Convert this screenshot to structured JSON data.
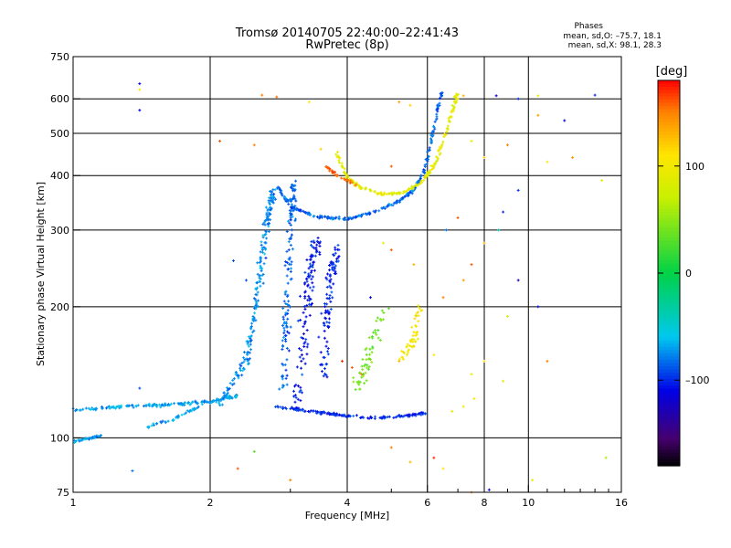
{
  "chart_data": {
    "type": "scatter",
    "title": "Tromsø 20140705 22:40:00–22:41:43",
    "subtitle": "RwPretec (8p)",
    "xlabel": "Frequency [MHz]",
    "ylabel": "Stationary phase Virtual Height [km]",
    "x_scale": "log",
    "y_scale": "log",
    "xlim": [
      1,
      16
    ],
    "ylim": [
      75,
      750
    ],
    "x_ticks": [
      1,
      2,
      4,
      6,
      8,
      10,
      16
    ],
    "x_tick_labels": [
      "1",
      "2",
      "4",
      "6",
      "8",
      "10",
      "16"
    ],
    "x_minor_ticks": [
      3,
      5,
      7,
      9,
      11,
      12,
      13,
      14,
      15
    ],
    "y_ticks": [
      75,
      100,
      200,
      300,
      400,
      500,
      600,
      750
    ],
    "y_tick_labels": [
      "75",
      "100",
      "200",
      "300",
      "400",
      "500",
      "600",
      "750"
    ],
    "grid": true,
    "stats": {
      "header": "Phases",
      "line_o": "mean, sd,O: –75.7, 18.1",
      "line_x": "mean, sd,X: 98.1, 28.3"
    },
    "colorbar": {
      "label": "[deg]",
      "range": [
        -180,
        180
      ],
      "ticks": [
        100,
        0,
        -100
      ],
      "tick_labels": [
        "100",
        "0",
        "–100"
      ]
    },
    "traces": [
      {
        "name": "",
        "segments": [
          [
            1.0,
            98
          ],
          [
            1.15,
            101
          ]
        ],
        "phase": -70,
        "n": 45,
        "spread": 0.008
      },
      {
        "name": "",
        "segments": [
          [
            1.0,
            116
          ],
          [
            1.3,
            118
          ],
          [
            1.6,
            119
          ],
          [
            2.0,
            121
          ],
          [
            2.3,
            125
          ]
        ],
        "phase": -70,
        "n": 170,
        "spread": 0.012
      },
      {
        "name": "",
        "segments": [
          [
            1.45,
            106
          ],
          [
            1.65,
            110
          ],
          [
            1.9,
            118
          ]
        ],
        "phase": -70,
        "n": 40,
        "spread": 0.015
      },
      {
        "name": "",
        "segments": [
          [
            2.1,
            120
          ],
          [
            2.4,
            150
          ],
          [
            2.55,
            220
          ],
          [
            2.65,
            300
          ],
          [
            2.75,
            370
          ]
        ],
        "phase": -75,
        "n": 210,
        "spread": 0.025
      },
      {
        "name": "",
        "segments": [
          [
            2.9,
            130
          ],
          [
            2.95,
            200
          ],
          [
            3.0,
            300
          ],
          [
            3.05,
            390
          ]
        ],
        "phase": -85,
        "n": 140,
        "spread": 0.03
      },
      {
        "name": "",
        "segments": [
          [
            2.8,
            380
          ],
          [
            3.0,
            340
          ],
          [
            3.4,
            322
          ],
          [
            4.0,
            318
          ],
          [
            4.6,
            330
          ],
          [
            5.2,
            350
          ],
          [
            5.6,
            370
          ],
          [
            5.9,
            410
          ],
          [
            6.1,
            470
          ],
          [
            6.3,
            560
          ],
          [
            6.45,
            620
          ]
        ],
        "phase": -85,
        "n": 260,
        "spread": 0.01
      },
      {
        "name": "",
        "segments": [
          [
            3.8,
            450
          ],
          [
            4.0,
            395
          ],
          [
            4.3,
            375
          ],
          [
            4.8,
            362
          ],
          [
            5.3,
            365
          ],
          [
            5.8,
            385
          ],
          [
            6.2,
            420
          ],
          [
            6.5,
            480
          ],
          [
            6.8,
            560
          ],
          [
            7.0,
            620
          ]
        ],
        "phase": 90,
        "n": 200,
        "spread": 0.012
      },
      {
        "name": "",
        "segments": [
          [
            3.6,
            420
          ],
          [
            3.8,
            400
          ],
          [
            4.2,
            380
          ]
        ],
        "phase": 155,
        "n": 35,
        "spread": 0.01
      },
      {
        "name": "",
        "segments": [
          [
            2.8,
            118
          ],
          [
            3.3,
            115
          ],
          [
            3.8,
            113
          ],
          [
            4.5,
            111
          ],
          [
            5.2,
            112
          ],
          [
            6.0,
            114
          ]
        ],
        "phase": -100,
        "n": 150,
        "spread": 0.01
      },
      {
        "name": "",
        "segments": [
          [
            3.1,
            120
          ],
          [
            3.2,
            170
          ],
          [
            3.3,
            230
          ],
          [
            3.45,
            290
          ]
        ],
        "phase": -105,
        "n": 120,
        "spread": 0.04
      },
      {
        "name": "",
        "segments": [
          [
            3.5,
            130
          ],
          [
            3.6,
            180
          ],
          [
            3.7,
            240
          ],
          [
            3.8,
            270
          ]
        ],
        "phase": -100,
        "n": 100,
        "spread": 0.04
      },
      {
        "name": "",
        "segments": [
          [
            4.2,
            130
          ],
          [
            4.5,
            160
          ],
          [
            4.8,
            200
          ]
        ],
        "phase": 40,
        "n": 60,
        "spread": 0.05
      },
      {
        "name": "",
        "segments": [
          [
            5.3,
            150
          ],
          [
            5.6,
            170
          ],
          [
            5.8,
            200
          ]
        ],
        "phase": 105,
        "n": 50,
        "spread": 0.04
      }
    ],
    "scatter_points": [
      [
        1.4,
        650,
        -110
      ],
      [
        1.4,
        565,
        -110
      ],
      [
        1.4,
        630,
        110
      ],
      [
        2.6,
        612,
        150
      ],
      [
        2.8,
        606,
        155
      ],
      [
        3.3,
        590,
        110
      ],
      [
        5.2,
        590,
        140
      ],
      [
        5.5,
        580,
        120
      ],
      [
        7.2,
        610,
        130
      ],
      [
        8.5,
        610,
        -120
      ],
      [
        9.5,
        600,
        -100
      ],
      [
        10.5,
        610,
        100
      ],
      [
        12.0,
        535,
        -110
      ],
      [
        14.0,
        612,
        -100
      ],
      [
        10.5,
        550,
        140
      ],
      [
        9.0,
        470,
        150
      ],
      [
        8.0,
        440,
        120
      ],
      [
        7.5,
        480,
        100
      ],
      [
        2.1,
        480,
        160
      ],
      [
        2.5,
        470,
        150
      ],
      [
        3.5,
        460,
        120
      ],
      [
        11.0,
        430,
        110
      ],
      [
        12.5,
        440,
        140
      ],
      [
        8.8,
        330,
        -100
      ],
      [
        9.5,
        370,
        -100
      ],
      [
        14.5,
        390,
        90
      ],
      [
        9.5,
        230,
        -130
      ],
      [
        10.5,
        200,
        -110
      ],
      [
        7.0,
        320,
        160
      ],
      [
        7.5,
        250,
        160
      ],
      [
        8.0,
        280,
        130
      ],
      [
        7.2,
        230,
        140
      ],
      [
        7.5,
        140,
        100
      ],
      [
        8.0,
        150,
        110
      ],
      [
        8.8,
        135,
        90
      ],
      [
        6.8,
        115,
        90
      ],
      [
        7.2,
        118,
        100
      ],
      [
        7.6,
        123,
        110
      ],
      [
        6.2,
        90,
        170
      ],
      [
        6.5,
        85,
        110
      ],
      [
        5.0,
        95,
        150
      ],
      [
        5.5,
        88,
        130
      ],
      [
        7.5,
        75,
        150
      ],
      [
        8.2,
        76,
        -110
      ],
      [
        10.2,
        80,
        100
      ],
      [
        14.8,
        90,
        60
      ],
      [
        2.5,
        93,
        30
      ],
      [
        2.3,
        85,
        160
      ],
      [
        3.0,
        80,
        150
      ],
      [
        1.35,
        84,
        -80
      ],
      [
        1.4,
        130,
        -90
      ],
      [
        5.0,
        420,
        160
      ],
      [
        4.5,
        210,
        -110
      ],
      [
        6.5,
        210,
        150
      ],
      [
        5.0,
        270,
        160
      ],
      [
        4.8,
        280,
        100
      ],
      [
        9.0,
        190,
        80
      ],
      [
        8.6,
        300,
        -40
      ],
      [
        11.0,
        150,
        150
      ],
      [
        3.9,
        150,
        170
      ],
      [
        4.1,
        145,
        160
      ],
      [
        4.3,
        140,
        150
      ],
      [
        5.2,
        150,
        130
      ],
      [
        6.2,
        155,
        110
      ],
      [
        2.4,
        230,
        -90
      ],
      [
        2.25,
        255,
        -90
      ],
      [
        5.6,
        250,
        130
      ],
      [
        6.6,
        300,
        -80
      ]
    ]
  }
}
